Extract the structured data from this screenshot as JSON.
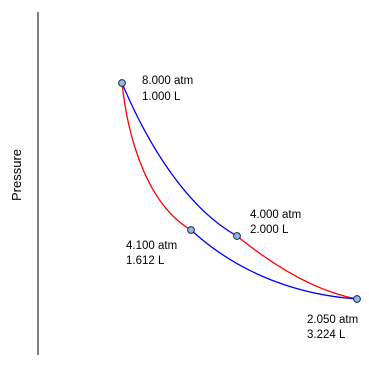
{
  "diagram": {
    "y_axis_label": "Pressure",
    "colors": {
      "curve_a": "#ff0000",
      "curve_b": "#0000ff",
      "point_fill": "#8fb8e0",
      "point_stroke": "#1a2a4a",
      "axis": "#000000"
    },
    "points": [
      {
        "pressure": "8.000 atm",
        "volume": "1.000 L"
      },
      {
        "pressure": "4.000 atm",
        "volume": "2.000 L"
      },
      {
        "pressure": "4.100 atm",
        "volume": "1.612 L"
      },
      {
        "pressure": "2.050 atm",
        "volume": "3.224 L"
      }
    ]
  }
}
